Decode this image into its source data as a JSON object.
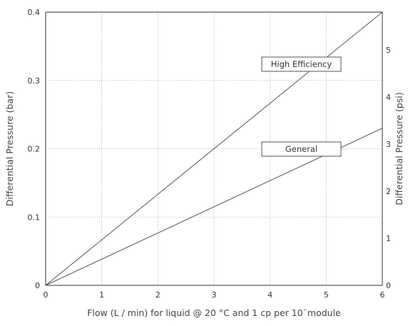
{
  "chart_data": {
    "type": "line",
    "title": "",
    "xlabel": "Flow (L / min) for liquid @ 20 °C and 1 cp per 10¨module",
    "ylabel": "Differential Pressure (bar)",
    "y2label": "Differential Pressure (psi)",
    "xlim": [
      0,
      6
    ],
    "ylim": [
      0,
      0.4
    ],
    "y2lim": [
      0,
      5.8
    ],
    "x_ticks": [
      "0",
      "1",
      "2",
      "3",
      "4",
      "5",
      "6"
    ],
    "y_ticks": [
      "0",
      "0.1",
      "0.2",
      "0.3",
      "0.4"
    ],
    "y2_ticks": [
      "0",
      "1",
      "2",
      "3",
      "4",
      "5"
    ],
    "grid": true,
    "series": [
      {
        "name": "High Efficiency",
        "x": [
          0,
          6
        ],
        "y": [
          0,
          0.4
        ],
        "color": "#555555"
      },
      {
        "name": "General",
        "x": [
          0,
          6
        ],
        "y": [
          0,
          0.23
        ],
        "color": "#555555"
      }
    ]
  }
}
